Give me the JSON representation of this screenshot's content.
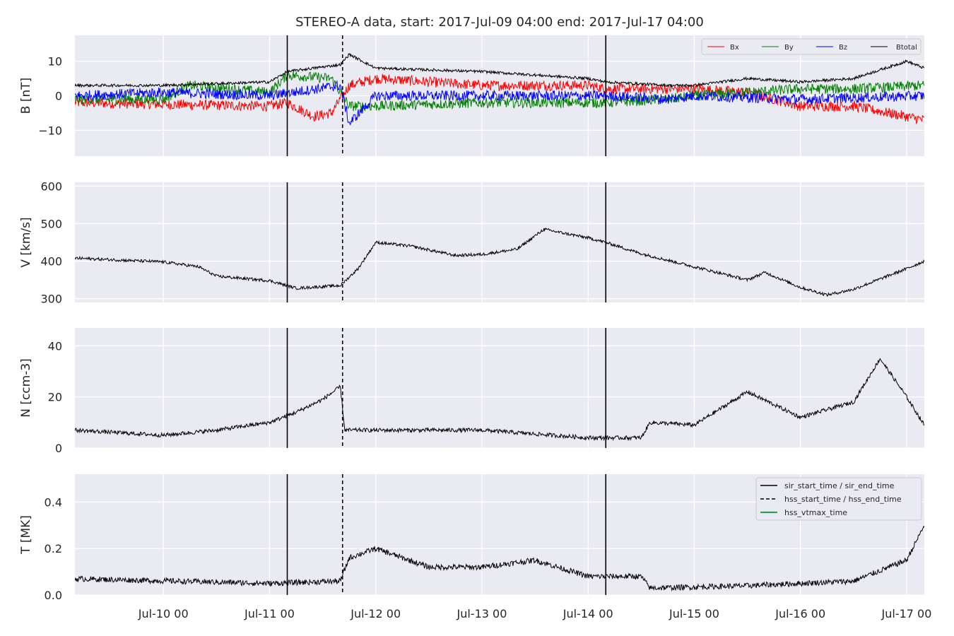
{
  "chart_data": {
    "type": "line",
    "title": "STEREO-A data, start: 2017-Jul-09 04:00  end: 2017-Jul-17 04:00",
    "time_range": [
      "2017-07-09 04:00",
      "2017-07-17 04:00"
    ],
    "x_tick_labels": [
      "Jul-10 00",
      "Jul-11 00",
      "Jul-12 00",
      "Jul-13 00",
      "Jul-14 00",
      "Jul-15 00",
      "Jul-16 00",
      "Jul-17 00"
    ],
    "x_tick_times": [
      "2017-07-10 00:00",
      "2017-07-11 00:00",
      "2017-07-12 00:00",
      "2017-07-13 00:00",
      "2017-07-14 00:00",
      "2017-07-15 00:00",
      "2017-07-16 00:00",
      "2017-07-17 00:00"
    ],
    "event_lines": {
      "sir_start_time": "2017-07-11 04:00",
      "hss_start_time": "2017-07-11 16:30",
      "sir_end_time": "2017-07-14 04:00"
    },
    "grid": true,
    "panels": [
      {
        "id": "B",
        "ylabel": "B [nT]",
        "ylim": [
          -17.5,
          17.5
        ],
        "yticks": [
          -10,
          0,
          10
        ],
        "ytick_labels": [
          "−10",
          "0",
          "10"
        ],
        "legend_position": "top-right",
        "series": [
          {
            "name": "Bx",
            "color": "#ff0000",
            "noise": 1.5,
            "points": [
              [
                "2017-07-09 04:00",
                -2
              ],
              [
                "2017-07-10 00:00",
                -2.5
              ],
              [
                "2017-07-11 00:00",
                -3
              ],
              [
                "2017-07-11 04:00",
                -2
              ],
              [
                "2017-07-11 10:00",
                -6
              ],
              [
                "2017-07-11 14:00",
                -5
              ],
              [
                "2017-07-11 18:00",
                3
              ],
              [
                "2017-07-12 00:00",
                5
              ],
              [
                "2017-07-13 00:00",
                3
              ],
              [
                "2017-07-14 00:00",
                3
              ],
              [
                "2017-07-14 04:00",
                2
              ],
              [
                "2017-07-14 18:00",
                2
              ],
              [
                "2017-07-15 00:00",
                2
              ],
              [
                "2017-07-15 12:00",
                1
              ],
              [
                "2017-07-16 00:00",
                -3
              ],
              [
                "2017-07-16 12:00",
                -3
              ],
              [
                "2017-07-17 04:00",
                -7
              ]
            ]
          },
          {
            "name": "By",
            "color": "#008000",
            "noise": 1.5,
            "points": [
              [
                "2017-07-09 04:00",
                -1
              ],
              [
                "2017-07-10 00:00",
                -1
              ],
              [
                "2017-07-10 06:00",
                3
              ],
              [
                "2017-07-11 00:00",
                1
              ],
              [
                "2017-07-11 04:00",
                6
              ],
              [
                "2017-07-11 14:00",
                5
              ],
              [
                "2017-07-11 18:00",
                -3
              ],
              [
                "2017-07-12 00:00",
                -3
              ],
              [
                "2017-07-13 00:00",
                -2
              ],
              [
                "2017-07-14 04:00",
                -2
              ],
              [
                "2017-07-14 18:00",
                -1
              ],
              [
                "2017-07-15 00:00",
                0
              ],
              [
                "2017-07-15 12:00",
                1
              ],
              [
                "2017-07-16 00:00",
                2
              ],
              [
                "2017-07-16 12:00",
                2
              ],
              [
                "2017-07-17 04:00",
                3
              ]
            ]
          },
          {
            "name": "Bz",
            "color": "#0000ff",
            "noise": 1.5,
            "points": [
              [
                "2017-07-09 04:00",
                0
              ],
              [
                "2017-07-10 00:00",
                1
              ],
              [
                "2017-07-11 00:00",
                0
              ],
              [
                "2017-07-11 16:00",
                3
              ],
              [
                "2017-07-11 18:00",
                -8
              ],
              [
                "2017-07-12 00:00",
                0
              ],
              [
                "2017-07-13 00:00",
                0
              ],
              [
                "2017-07-14 04:00",
                0
              ],
              [
                "2017-07-14 18:00",
                -1
              ],
              [
                "2017-07-15 00:00",
                0
              ],
              [
                "2017-07-16 00:00",
                -1
              ],
              [
                "2017-07-17 04:00",
                0
              ]
            ]
          },
          {
            "name": "Btotal",
            "color": "#000000",
            "noise": 0.4,
            "points": [
              [
                "2017-07-09 04:00",
                3
              ],
              [
                "2017-07-10 00:00",
                3
              ],
              [
                "2017-07-11 00:00",
                4
              ],
              [
                "2017-07-11 04:00",
                7
              ],
              [
                "2017-07-11 16:00",
                9
              ],
              [
                "2017-07-11 18:00",
                12
              ],
              [
                "2017-07-12 00:00",
                8
              ],
              [
                "2017-07-13 00:00",
                7
              ],
              [
                "2017-07-14 00:00",
                5
              ],
              [
                "2017-07-14 04:00",
                4
              ],
              [
                "2017-07-14 18:00",
                3
              ],
              [
                "2017-07-15 00:00",
                3
              ],
              [
                "2017-07-15 12:00",
                5
              ],
              [
                "2017-07-16 00:00",
                4
              ],
              [
                "2017-07-16 12:00",
                5
              ],
              [
                "2017-07-17 00:00",
                10
              ],
              [
                "2017-07-17 04:00",
                8
              ]
            ]
          }
        ]
      },
      {
        "id": "V",
        "ylabel": "V [km/s]",
        "ylim": [
          290,
          610
        ],
        "yticks": [
          300,
          400,
          500,
          600
        ],
        "ytick_labels": [
          "300",
          "400",
          "500",
          "600"
        ],
        "series": [
          {
            "name": "V",
            "color": "#000000",
            "noise": 4,
            "points": [
              [
                "2017-07-09 04:00",
                408
              ],
              [
                "2017-07-10 00:00",
                398
              ],
              [
                "2017-07-10 08:00",
                385
              ],
              [
                "2017-07-10 12:00",
                360
              ],
              [
                "2017-07-11 00:00",
                348
              ],
              [
                "2017-07-11 06:00",
                328
              ],
              [
                "2017-07-11 16:00",
                335
              ],
              [
                "2017-07-11 20:00",
                380
              ],
              [
                "2017-07-12 00:00",
                450
              ],
              [
                "2017-07-12 08:00",
                440
              ],
              [
                "2017-07-12 18:00",
                415
              ],
              [
                "2017-07-13 00:00",
                418
              ],
              [
                "2017-07-13 08:00",
                432
              ],
              [
                "2017-07-13 14:00",
                485
              ],
              [
                "2017-07-14 00:00",
                462
              ],
              [
                "2017-07-14 04:00",
                450
              ],
              [
                "2017-07-14 12:00",
                420
              ],
              [
                "2017-07-15 00:00",
                385
              ],
              [
                "2017-07-15 12:00",
                350
              ],
              [
                "2017-07-15 16:00",
                370
              ],
              [
                "2017-07-16 00:00",
                330
              ],
              [
                "2017-07-16 06:00",
                310
              ],
              [
                "2017-07-16 12:00",
                325
              ],
              [
                "2017-07-17 00:00",
                380
              ],
              [
                "2017-07-17 04:00",
                400
              ]
            ]
          }
        ]
      },
      {
        "id": "N",
        "ylabel": "N [ccm-3]",
        "ylim": [
          0,
          47
        ],
        "yticks": [
          0,
          20,
          40
        ],
        "ytick_labels": [
          "0",
          "20",
          "40"
        ],
        "series": [
          {
            "name": "N",
            "color": "#000000",
            "noise": 0.8,
            "points": [
              [
                "2017-07-09 04:00",
                7
              ],
              [
                "2017-07-10 00:00",
                5
              ],
              [
                "2017-07-10 12:00",
                7
              ],
              [
                "2017-07-11 00:00",
                10
              ],
              [
                "2017-07-11 06:00",
                14
              ],
              [
                "2017-07-11 12:00",
                19
              ],
              [
                "2017-07-11 16:00",
                24
              ],
              [
                "2017-07-11 17:00",
                7
              ],
              [
                "2017-07-12 00:00",
                7
              ],
              [
                "2017-07-13 00:00",
                7
              ],
              [
                "2017-07-14 00:00",
                4
              ],
              [
                "2017-07-14 12:00",
                4
              ],
              [
                "2017-07-14 14:00",
                10
              ],
              [
                "2017-07-15 00:00",
                9
              ],
              [
                "2017-07-15 12:00",
                22
              ],
              [
                "2017-07-16 00:00",
                12
              ],
              [
                "2017-07-16 12:00",
                18
              ],
              [
                "2017-07-16 18:00",
                35
              ],
              [
                "2017-07-17 00:00",
                20
              ],
              [
                "2017-07-17 04:00",
                9
              ]
            ]
          }
        ]
      },
      {
        "id": "T",
        "ylabel": "T [MK]",
        "ylim": [
          0,
          0.52
        ],
        "yticks": [
          0.0,
          0.2,
          0.4
        ],
        "ytick_labels": [
          "0.0",
          "0.2",
          "0.4"
        ],
        "legend_position": "top-right",
        "legend": [
          {
            "label": "sir_start_time / sir_end_time",
            "color": "#000000",
            "style": "solid"
          },
          {
            "label": "hss_start_time / hss_end_time",
            "color": "#000000",
            "style": "dashed"
          },
          {
            "label": "hss_vtmax_time",
            "color": "#2ca05a",
            "style": "solid"
          }
        ],
        "series": [
          {
            "name": "T",
            "color": "#000000",
            "noise": 0.012,
            "points": [
              [
                "2017-07-09 04:00",
                0.07
              ],
              [
                "2017-07-11 00:00",
                0.05
              ],
              [
                "2017-07-11 16:00",
                0.06
              ],
              [
                "2017-07-11 18:00",
                0.16
              ],
              [
                "2017-07-12 00:00",
                0.2
              ],
              [
                "2017-07-12 12:00",
                0.12
              ],
              [
                "2017-07-13 00:00",
                0.12
              ],
              [
                "2017-07-13 12:00",
                0.15
              ],
              [
                "2017-07-14 00:00",
                0.08
              ],
              [
                "2017-07-14 12:00",
                0.08
              ],
              [
                "2017-07-14 14:00",
                0.03
              ],
              [
                "2017-07-15 12:00",
                0.04
              ],
              [
                "2017-07-16 00:00",
                0.05
              ],
              [
                "2017-07-16 12:00",
                0.06
              ],
              [
                "2017-07-17 00:00",
                0.15
              ],
              [
                "2017-07-17 04:00",
                0.3
              ]
            ]
          }
        ]
      }
    ]
  }
}
